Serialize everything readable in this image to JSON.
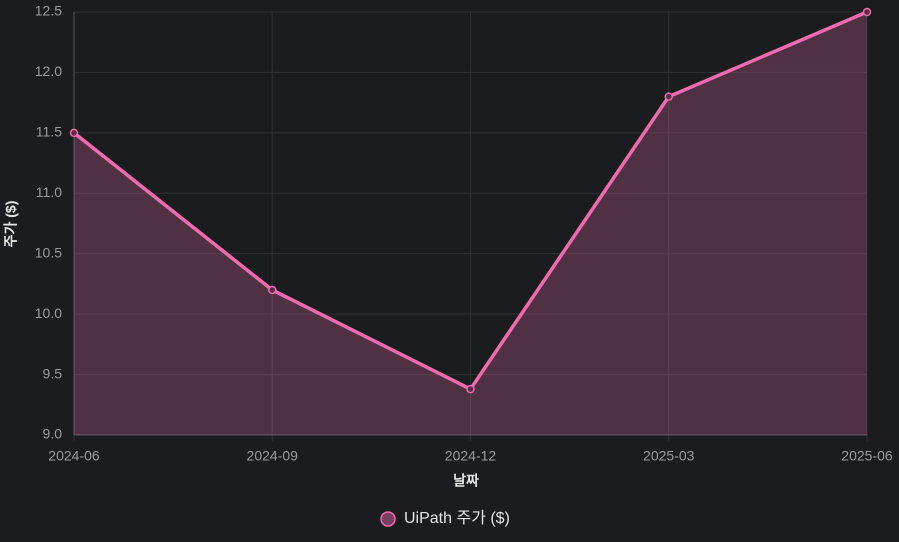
{
  "chart_data": {
    "type": "line",
    "x_label": "날짜",
    "y_label": "주가 ($)",
    "categories": [
      "2024-06",
      "2024-09",
      "2024-12",
      "2025-03",
      "2025-06"
    ],
    "series": [
      {
        "name": "UiPath 주가 ($)",
        "color": "#f06aae",
        "values": [
          11.5,
          10.2,
          9.38,
          11.8,
          12.5
        ]
      }
    ],
    "area": true,
    "ylim": [
      9,
      12.5
    ],
    "yticks": [
      {
        "value": 9,
        "label": "9.0"
      },
      9.5,
      {
        "value": 10,
        "label": "10.0"
      },
      10.5,
      {
        "value": 11,
        "label": "11.0"
      },
      11.5,
      {
        "value": 12,
        "label": "12.0"
      },
      12.5
    ],
    "grid": true,
    "legend": "bottom"
  }
}
